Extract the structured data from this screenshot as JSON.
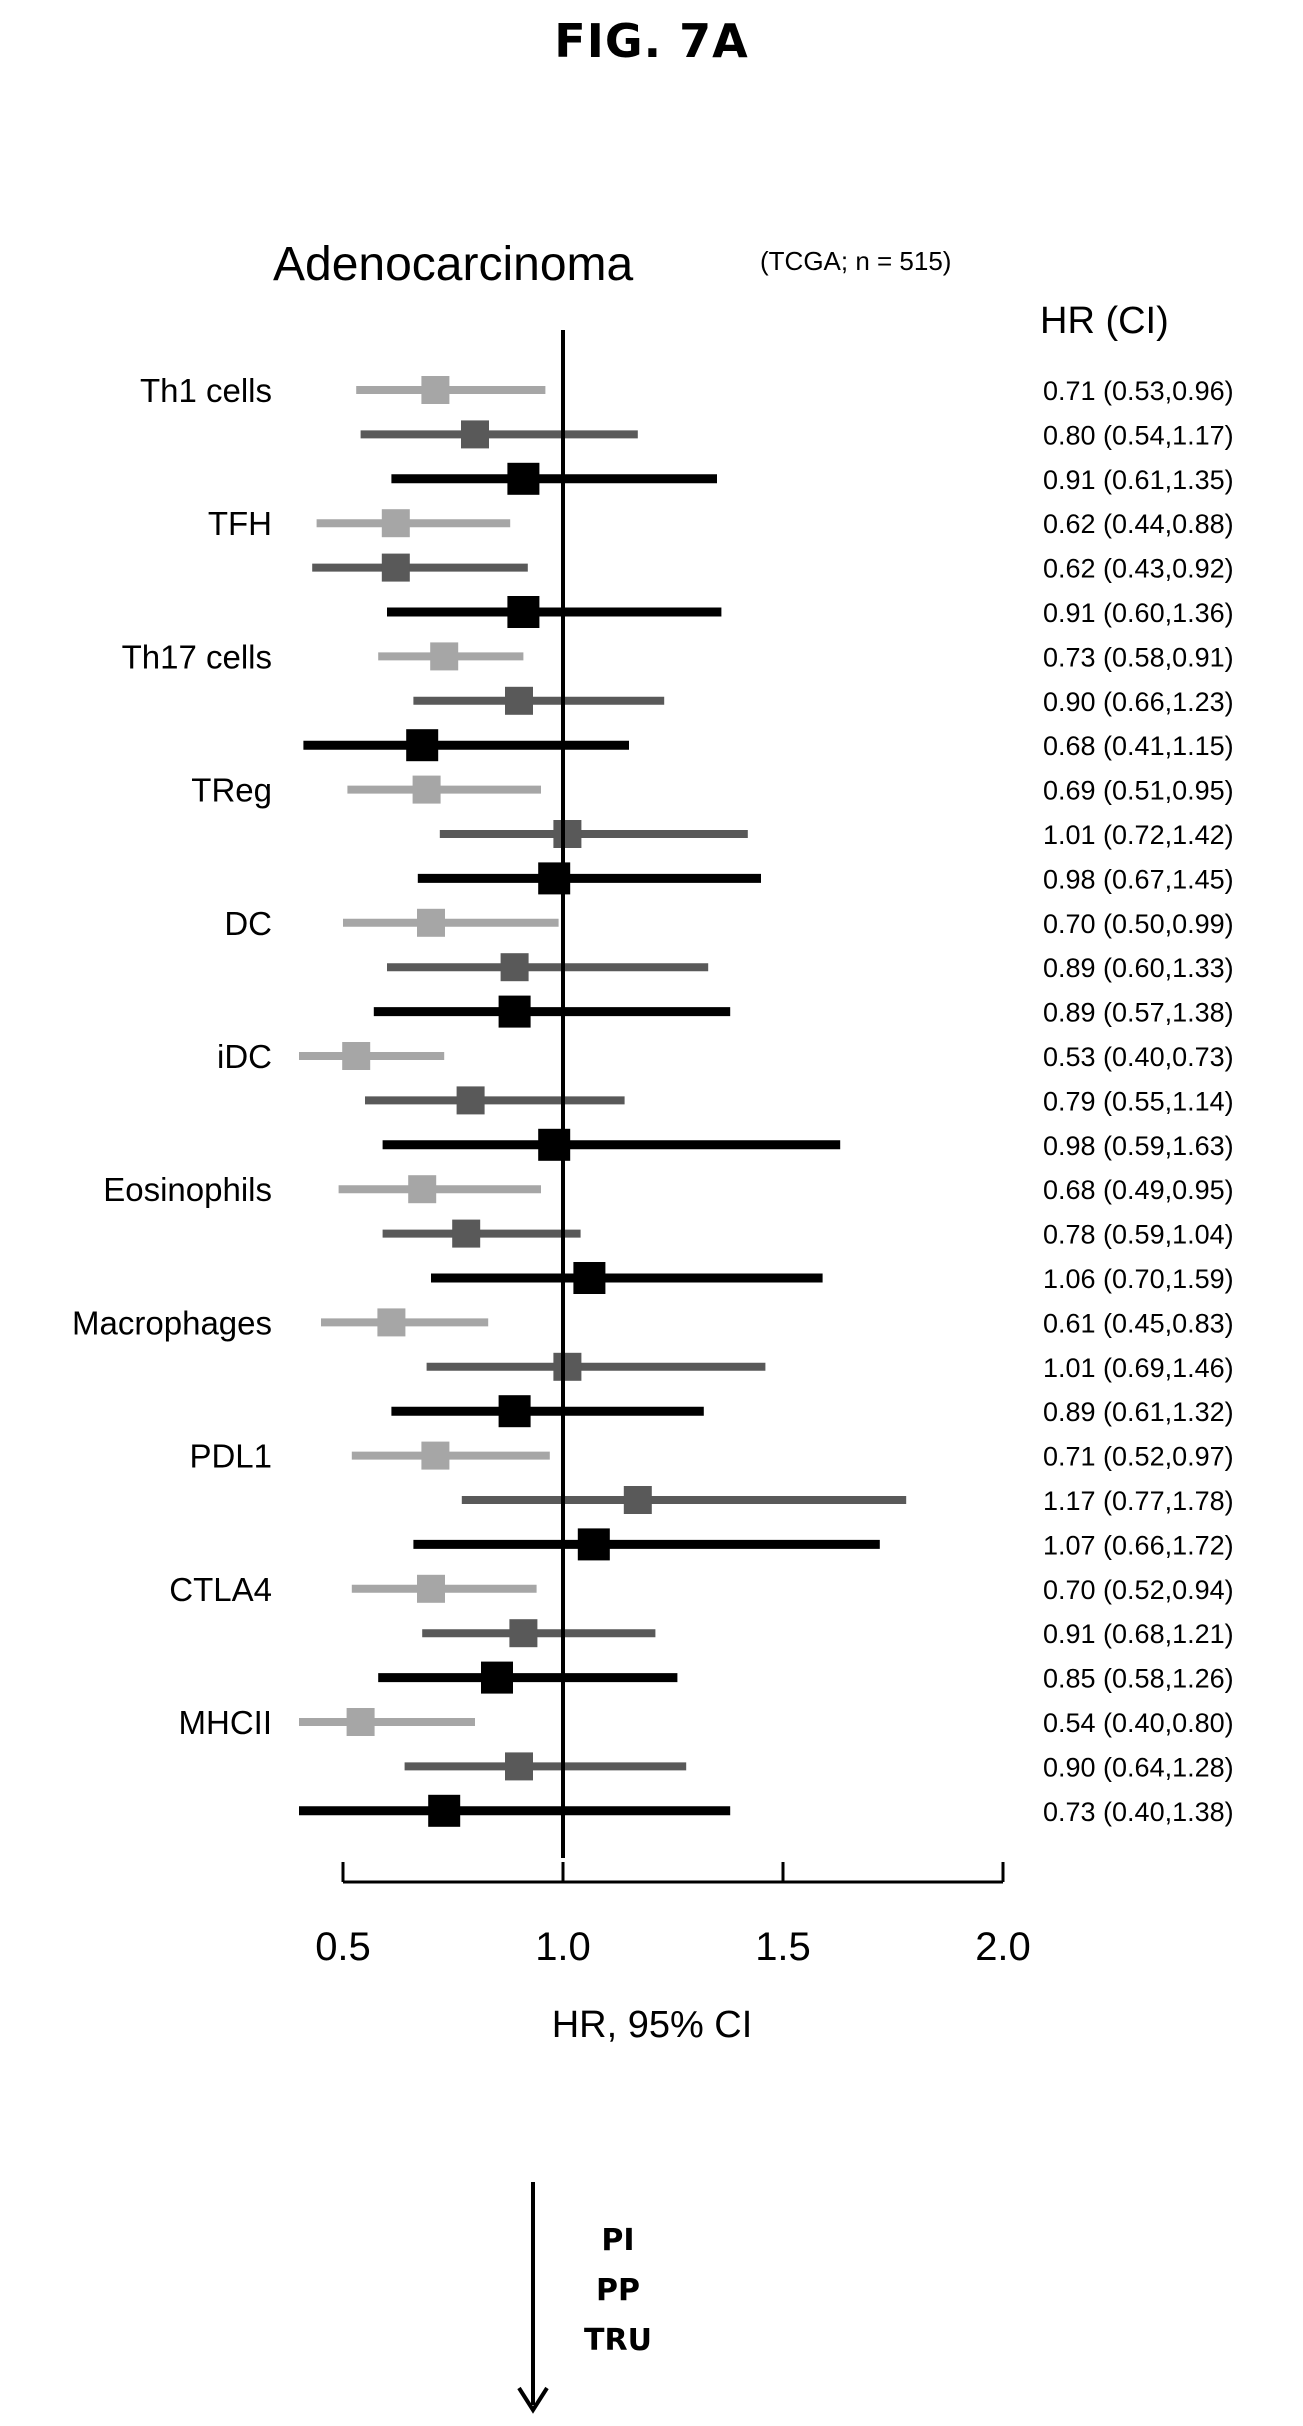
{
  "figure_label": "FIG. 7A",
  "chart_data": {
    "type": "forest",
    "title": "Adenocarcinoma",
    "subtitle": "(TCGA; n = 515)",
    "column_header": "HR (CI)",
    "xlabel": "HR, 95% CI",
    "xlim": [
      0.5,
      2.0
    ],
    "xticks": [
      "0.5",
      "1.0",
      "1.5",
      "2.0"
    ],
    "reference_line": 1.0,
    "series_colors": [
      "#a6a6a6",
      "#595959",
      "#000000"
    ],
    "groups": [
      {
        "label": "Th1 cells",
        "rows": [
          {
            "hr": 0.71,
            "lo": 0.53,
            "hi": 0.96,
            "text": "0.71 (0.53,0.96)"
          },
          {
            "hr": 0.8,
            "lo": 0.54,
            "hi": 1.17,
            "text": "0.80 (0.54,1.17)"
          },
          {
            "hr": 0.91,
            "lo": 0.61,
            "hi": 1.35,
            "text": "0.91 (0.61,1.35)"
          }
        ]
      },
      {
        "label": "TFH",
        "rows": [
          {
            "hr": 0.62,
            "lo": 0.44,
            "hi": 0.88,
            "text": "0.62 (0.44,0.88)"
          },
          {
            "hr": 0.62,
            "lo": 0.43,
            "hi": 0.92,
            "text": "0.62 (0.43,0.92)"
          },
          {
            "hr": 0.91,
            "lo": 0.6,
            "hi": 1.36,
            "text": "0.91 (0.60,1.36)"
          }
        ]
      },
      {
        "label": "Th17 cells",
        "rows": [
          {
            "hr": 0.73,
            "lo": 0.58,
            "hi": 0.91,
            "text": "0.73 (0.58,0.91)"
          },
          {
            "hr": 0.9,
            "lo": 0.66,
            "hi": 1.23,
            "text": "0.90 (0.66,1.23)"
          },
          {
            "hr": 0.68,
            "lo": 0.41,
            "hi": 1.15,
            "text": "0.68 (0.41,1.15)"
          }
        ]
      },
      {
        "label": "TReg",
        "rows": [
          {
            "hr": 0.69,
            "lo": 0.51,
            "hi": 0.95,
            "text": "0.69 (0.51,0.95)"
          },
          {
            "hr": 1.01,
            "lo": 0.72,
            "hi": 1.42,
            "text": "1.01 (0.72,1.42)"
          },
          {
            "hr": 0.98,
            "lo": 0.67,
            "hi": 1.45,
            "text": "0.98 (0.67,1.45)"
          }
        ]
      },
      {
        "label": "DC",
        "rows": [
          {
            "hr": 0.7,
            "lo": 0.5,
            "hi": 0.99,
            "text": "0.70 (0.50,0.99)"
          },
          {
            "hr": 0.89,
            "lo": 0.6,
            "hi": 1.33,
            "text": "0.89 (0.60,1.33)"
          },
          {
            "hr": 0.89,
            "lo": 0.57,
            "hi": 1.38,
            "text": "0.89 (0.57,1.38)"
          }
        ]
      },
      {
        "label": "iDC",
        "rows": [
          {
            "hr": 0.53,
            "lo": 0.4,
            "hi": 0.73,
            "text": "0.53 (0.40,0.73)"
          },
          {
            "hr": 0.79,
            "lo": 0.55,
            "hi": 1.14,
            "text": "0.79 (0.55,1.14)"
          },
          {
            "hr": 0.98,
            "lo": 0.59,
            "hi": 1.63,
            "text": "0.98 (0.59,1.63)"
          }
        ]
      },
      {
        "label": "Eosinophils",
        "rows": [
          {
            "hr": 0.68,
            "lo": 0.49,
            "hi": 0.95,
            "text": "0.68 (0.49,0.95)"
          },
          {
            "hr": 0.78,
            "lo": 0.59,
            "hi": 1.04,
            "text": "0.78 (0.59,1.04)"
          },
          {
            "hr": 1.06,
            "lo": 0.7,
            "hi": 1.59,
            "text": "1.06 (0.70,1.59)"
          }
        ]
      },
      {
        "label": "Macrophages",
        "rows": [
          {
            "hr": 0.61,
            "lo": 0.45,
            "hi": 0.83,
            "text": "0.61 (0.45,0.83)"
          },
          {
            "hr": 1.01,
            "lo": 0.69,
            "hi": 1.46,
            "text": "1.01 (0.69,1.46)"
          },
          {
            "hr": 0.89,
            "lo": 0.61,
            "hi": 1.32,
            "text": "0.89 (0.61,1.32)"
          }
        ]
      },
      {
        "label": "PDL1",
        "rows": [
          {
            "hr": 0.71,
            "lo": 0.52,
            "hi": 0.97,
            "text": "0.71 (0.52,0.97)"
          },
          {
            "hr": 1.17,
            "lo": 0.77,
            "hi": 1.78,
            "text": "1.17 (0.77,1.78)"
          },
          {
            "hr": 1.07,
            "lo": 0.66,
            "hi": 1.72,
            "text": "1.07 (0.66,1.72)"
          }
        ]
      },
      {
        "label": "CTLA4",
        "rows": [
          {
            "hr": 0.7,
            "lo": 0.52,
            "hi": 0.94,
            "text": "0.70 (0.52,0.94)"
          },
          {
            "hr": 0.91,
            "lo": 0.68,
            "hi": 1.21,
            "text": "0.91 (0.68,1.21)"
          },
          {
            "hr": 0.85,
            "lo": 0.58,
            "hi": 1.26,
            "text": "0.85 (0.58,1.26)"
          }
        ]
      },
      {
        "label": "MHCII",
        "rows": [
          {
            "hr": 0.54,
            "lo": 0.4,
            "hi": 0.8,
            "text": "0.54 (0.40,0.80)"
          },
          {
            "hr": 0.9,
            "lo": 0.64,
            "hi": 1.28,
            "text": "0.90 (0.64,1.28)"
          },
          {
            "hr": 0.73,
            "lo": 0.4,
            "hi": 1.38,
            "text": "0.73 (0.40,1.38)"
          }
        ]
      }
    ]
  },
  "flow": {
    "labels": [
      "PI",
      "PP",
      "TRU"
    ]
  }
}
